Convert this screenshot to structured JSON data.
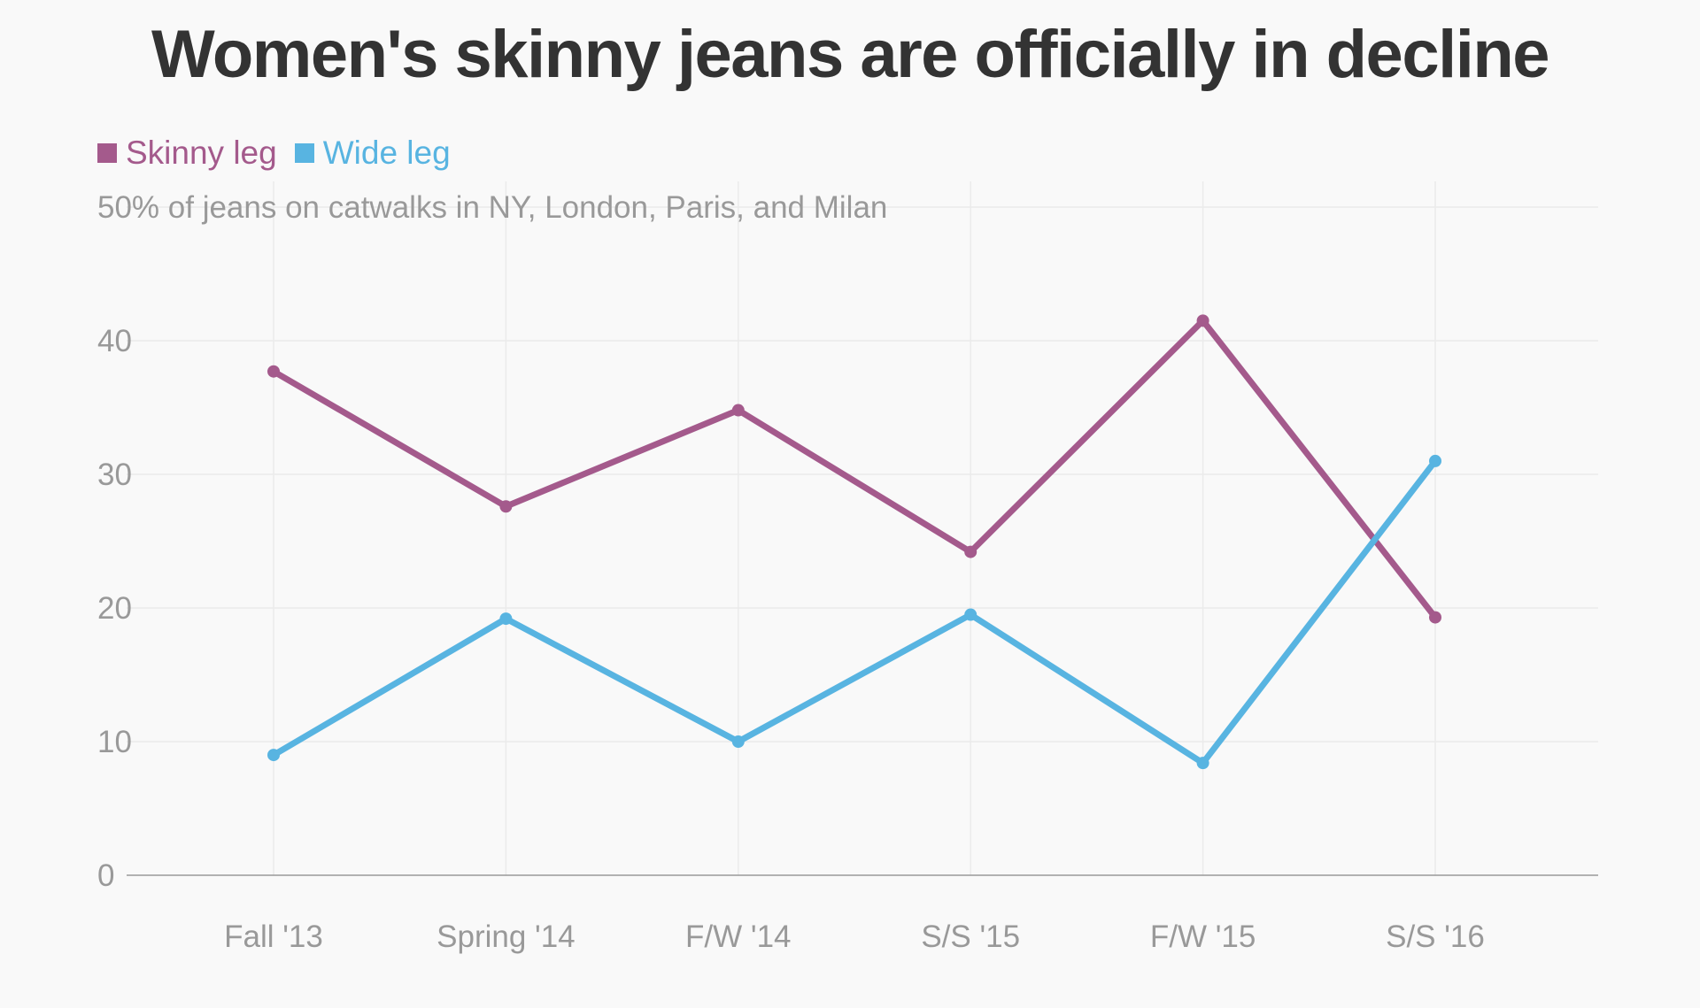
{
  "chart_data": {
    "type": "line",
    "title": "Women's skinny jeans are officially in decline",
    "y_unit_label": "50% of jeans on catwalks in NY, London, Paris, and Milan",
    "categories": [
      "Fall '13",
      "Spring '14",
      "F/W '14",
      "S/S '15",
      "F/W '15",
      "S/S '16"
    ],
    "series": [
      {
        "name": "Skinny leg",
        "color": "#a45a8c",
        "values": [
          37.7,
          27.6,
          34.8,
          24.2,
          41.5,
          19.3
        ]
      },
      {
        "name": "Wide leg",
        "color": "#58b4e1",
        "values": [
          9.0,
          19.2,
          10.0,
          19.5,
          8.4,
          31.0
        ]
      }
    ],
    "yticks": [
      "0",
      "10",
      "20",
      "30",
      "40"
    ],
    "ylim": [
      0,
      50
    ],
    "grid": true,
    "legend_position": "top-left"
  }
}
